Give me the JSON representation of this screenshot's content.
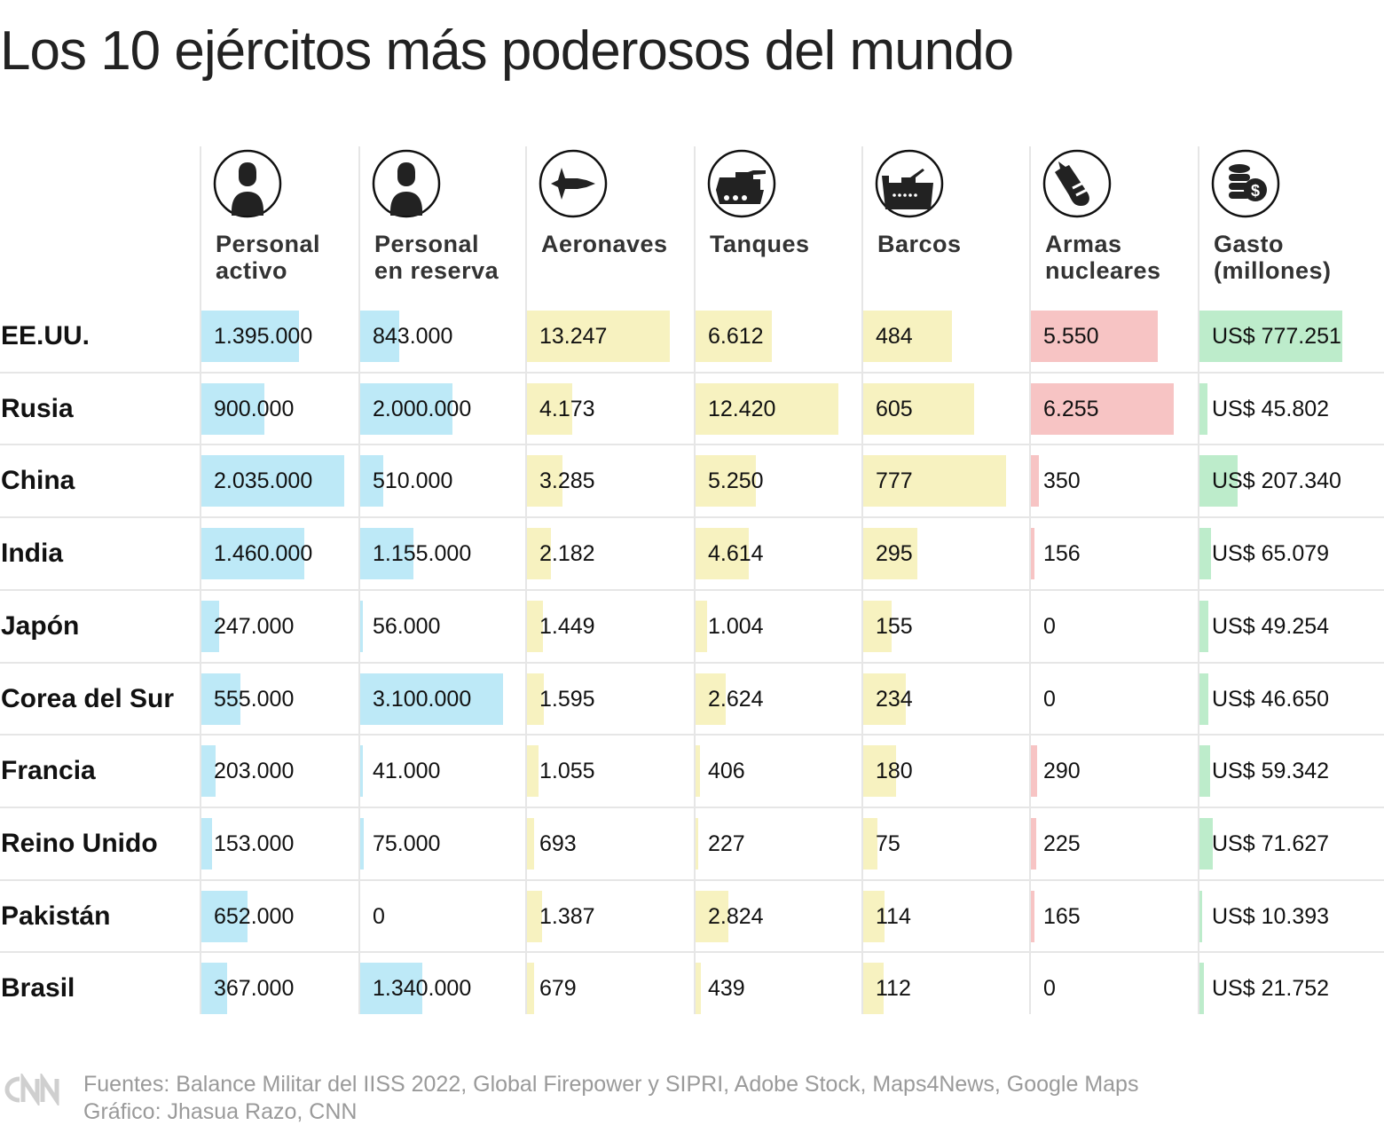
{
  "title": "Los 10 ejércitos más poderosos del mundo",
  "chart_data": {
    "type": "table",
    "columns": [
      {
        "label": [
          "Personal",
          "activo"
        ],
        "icon": "soldier-icon",
        "color": "#bde9f7"
      },
      {
        "label": [
          "Personal",
          "en reserva"
        ],
        "icon": "soldier-icon",
        "color": "#bde9f7"
      },
      {
        "label": [
          "Aeronaves"
        ],
        "icon": "fighter-jet-icon",
        "color": "#f7f2c0"
      },
      {
        "label": [
          "Tanques"
        ],
        "icon": "tank-icon",
        "color": "#f7f2c0"
      },
      {
        "label": [
          "Barcos"
        ],
        "icon": "warship-icon",
        "color": "#f7f2c0"
      },
      {
        "label": [
          "Armas",
          "nucleares"
        ],
        "icon": "bomb-icon",
        "color": "#f7c4c4"
      },
      {
        "label": [
          "Gasto",
          "(millones)"
        ],
        "icon": "coins-dollar-icon",
        "color": "#bdeccb"
      }
    ],
    "rows": [
      {
        "country": "EE.UU.",
        "values": [
          1395000,
          843000,
          13247,
          6612,
          484,
          5550,
          777251
        ],
        "labels": [
          "1.395.000",
          "843.000",
          "13.247",
          "6.612",
          "484",
          "5.550",
          "US$ 777.251"
        ]
      },
      {
        "country": "Rusia",
        "values": [
          900000,
          2000000,
          4173,
          12420,
          605,
          6255,
          45802
        ],
        "labels": [
          "900.000",
          "2.000.000",
          "4.173",
          "12.420",
          "605",
          "6.255",
          "US$ 45.802"
        ]
      },
      {
        "country": "China",
        "values": [
          2035000,
          510000,
          3285,
          5250,
          777,
          350,
          207340
        ],
        "labels": [
          "2.035.000",
          "510.000",
          "3.285",
          "5.250",
          "777",
          "350",
          "US$ 207.340"
        ]
      },
      {
        "country": "India",
        "values": [
          1460000,
          1155000,
          2182,
          4614,
          295,
          156,
          65079
        ],
        "labels": [
          "1.460.000",
          "1.155.000",
          "2.182",
          "4.614",
          "295",
          "156",
          "US$ 65.079"
        ]
      },
      {
        "country": "Japón",
        "values": [
          247000,
          56000,
          1449,
          1004,
          155,
          0,
          49254
        ],
        "labels": [
          "247.000",
          "56.000",
          "1.449",
          "1.004",
          "155",
          "0",
          "US$ 49.254"
        ]
      },
      {
        "country": "Corea del Sur",
        "values": [
          555000,
          3100000,
          1595,
          2624,
          234,
          0,
          46650
        ],
        "labels": [
          "555.000",
          "3.100.000",
          "1.595",
          "2.624",
          "234",
          "0",
          "US$ 46.650"
        ]
      },
      {
        "country": "Francia",
        "values": [
          203000,
          41000,
          1055,
          406,
          180,
          290,
          59342
        ],
        "labels": [
          "203.000",
          "41.000",
          "1.055",
          "406",
          "180",
          "290",
          "US$ 59.342"
        ]
      },
      {
        "country": "Reino Unido",
        "values": [
          153000,
          75000,
          693,
          227,
          75,
          225,
          71627
        ],
        "labels": [
          "153.000",
          "75.000",
          "693",
          "227",
          "75",
          "225",
          "US$ 71.627"
        ]
      },
      {
        "country": "Pakistán",
        "values": [
          652000,
          0,
          1387,
          2824,
          114,
          165,
          10393
        ],
        "labels": [
          "652.000",
          "0",
          "1.387",
          "2.824",
          "114",
          "165",
          "US$ 10.393"
        ]
      },
      {
        "country": "Brasil",
        "values": [
          367000,
          1340000,
          679,
          439,
          112,
          0,
          21752
        ],
        "labels": [
          "367.000",
          "1.340.000",
          "679",
          "439",
          "112",
          "0",
          "US$ 21.752"
        ]
      }
    ]
  },
  "footer": {
    "sources": "Fuentes: Balance Militar del IISS 2022, Global Firepower y SIPRI, Adobe Stock, Maps4News, Google Maps",
    "credit": "Gráfico: Jhasua Razo, CNN",
    "logo": "CNN"
  }
}
